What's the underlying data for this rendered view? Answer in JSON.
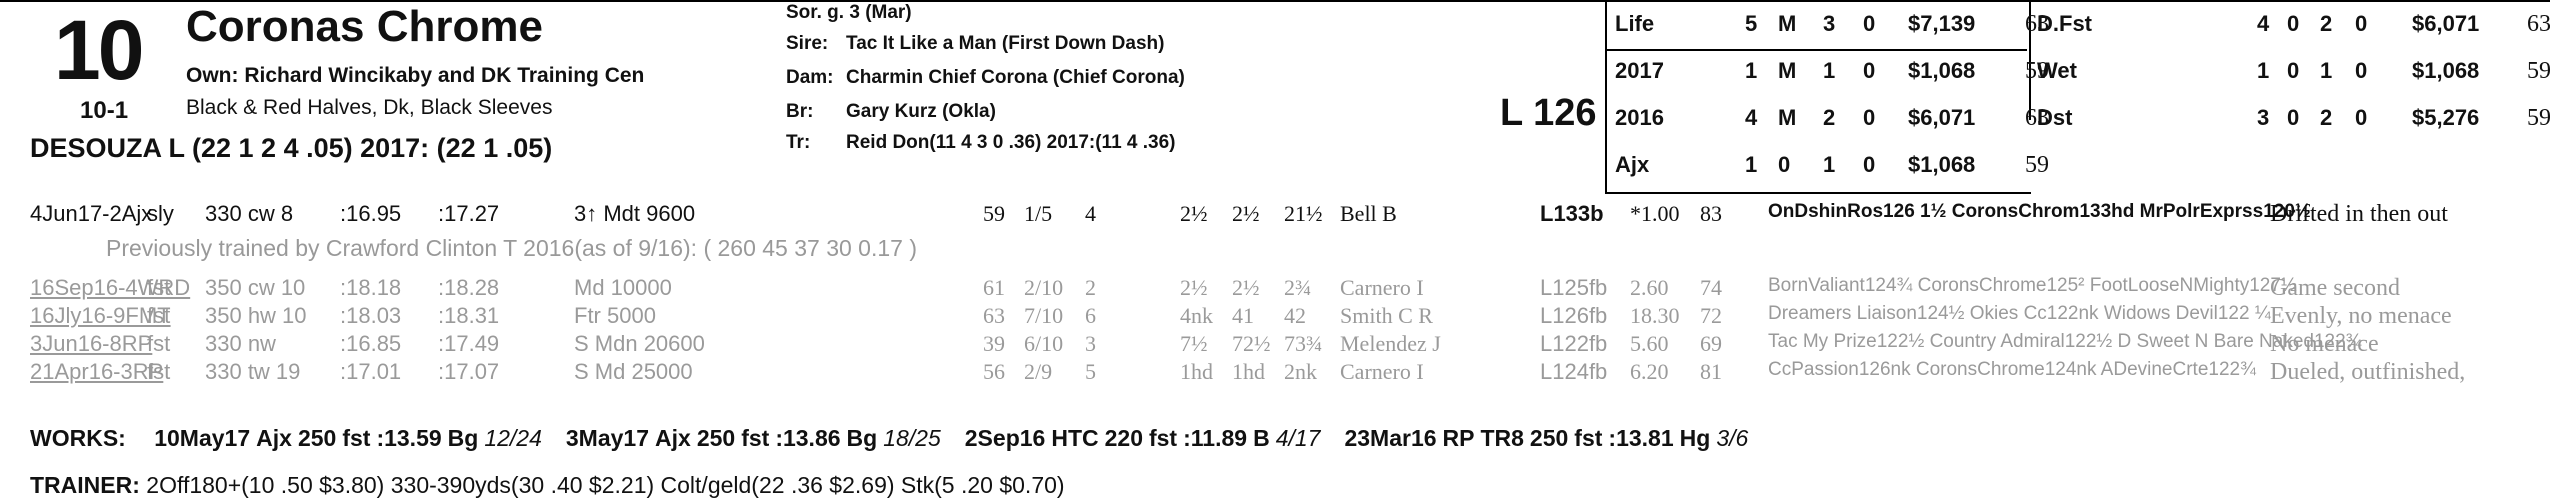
{
  "horse": {
    "number": "10",
    "odds": "10-1",
    "name": "Coronas Chrome",
    "owner": "Own: Richard Wincikaby and DK Training Cen",
    "silks": "Black & Red Halves, Dk, Black Sleeves",
    "jockey": "DESOUZA L (22 1 2 4 .05) 2017: (22 1 .05)"
  },
  "pedigree": {
    "sex_age": "Sor. g. 3 (Mar)",
    "sire_label": "Sire:",
    "sire": "Tac It Like a Man (First Down Dash)",
    "dam_label": "Dam:",
    "dam": "Charmin Chief Corona (Chief Corona)",
    "breeder_label": "Br:",
    "breeder": "Gary Kurz (Okla)",
    "trainer_label": "Tr:",
    "trainer": "Reid Don(11 4 3 0 .36) 2017:(11 4 .36)"
  },
  "weight": "L 126",
  "records_left": [
    {
      "label": "Life",
      "starts": "5",
      "w": "M",
      "p": "3",
      "s": "0",
      "earn": "$7,139",
      "speed": "63"
    },
    {
      "label": "2017",
      "starts": "1",
      "w": "M",
      "p": "1",
      "s": "0",
      "earn": "$1,068",
      "speed": "59"
    },
    {
      "label": "2016",
      "starts": "4",
      "w": "M",
      "p": "2",
      "s": "0",
      "earn": "$6,071",
      "speed": "63"
    },
    {
      "label": "Ajx",
      "starts": "1",
      "w": "0",
      "p": "1",
      "s": "0",
      "earn": "$1,068",
      "speed": "59"
    }
  ],
  "records_right": [
    {
      "label": "D.Fst",
      "starts": "4",
      "w": "0",
      "p": "2",
      "s": "0",
      "earn": "$6,071",
      "speed": "63"
    },
    {
      "label": "Wet",
      "starts": "1",
      "w": "0",
      "p": "1",
      "s": "0",
      "earn": "$1,068",
      "speed": "59"
    },
    {
      "label": "Dst",
      "starts": "3",
      "w": "0",
      "p": "2",
      "s": "0",
      "earn": "$5,276",
      "speed": "59"
    }
  ],
  "races": [
    {
      "date": "4Jun17-2Ajx",
      "cond": "sly",
      "dist": "330 cw 8",
      "f1": ":16.95",
      "f2": ":17.27",
      "type": "3↑ Mdt 9600",
      "sp": "59",
      "pp": "1/5",
      "st": "4",
      "c1": "2½",
      "c2": "2½",
      "fin": "21½",
      "jock": "Bell B",
      "wt": "L133b",
      "odds": "*1.00",
      "sr": "83",
      "top": "OnDshinRos126 1½ CoronsChrom133hd MrPolrExprss120½",
      "comment": "Drifted in then out"
    },
    {
      "date": "16Sep16-4WRD",
      "cond": "fst",
      "dist": "350 cw 10",
      "f1": ":18.18",
      "f2": ":18.28",
      "type": "Md 10000",
      "sp": "61",
      "pp": "2/10",
      "st": "2",
      "c1": "2½",
      "c2": "2½",
      "fin": "2¾",
      "jock": "Carnero I",
      "wt": "L125fb",
      "odds": "2.60",
      "sr": "74",
      "top": "BornValiant124¾ CoronsChrome125² FootLooseNMighty127½",
      "comment": "Game second"
    },
    {
      "date": "16Jly16-9FMT",
      "cond": "fst",
      "dist": "350 hw 10",
      "f1": ":18.03",
      "f2": ":18.31",
      "type": "Ftr 5000",
      "sp": "63",
      "pp": "7/10",
      "st": "6",
      "c1": "4nk",
      "c2": "41",
      "fin": "42",
      "jock": "Smith C R",
      "wt": "L126fb",
      "odds": "18.30",
      "sr": "72",
      "top": "Dreamers Liaison124½ Okies Cc122nk Widows Devil122 ¼",
      "comment": "Evenly, no menace"
    },
    {
      "date": "3Jun16-8RP",
      "cond": "fst",
      "dist": "330 nw",
      "f1": ":16.85",
      "f2": ":17.49",
      "type": "S Mdn 20600",
      "sp": "39",
      "pp": "6/10",
      "st": "3",
      "c1": "7½",
      "c2": "72½",
      "fin": "73¾",
      "jock": "Melendez J",
      "wt": "L122fb",
      "odds": "5.60",
      "sr": "69",
      "top": "Tac My Prize122½ Country Admiral122½ D Sweet N Bare Naked122¾",
      "comment": "No menace"
    },
    {
      "date": "21Apr16-3RP",
      "cond": "fst",
      "dist": "330 tw 19",
      "f1": ":17.01",
      "f2": ":17.07",
      "type": "S Md 25000",
      "sp": "56",
      "pp": "2/9",
      "st": "5",
      "c1": "1hd",
      "c2": "1hd",
      "fin": "2nk",
      "jock": "Carnero I",
      "wt": "L124fb",
      "odds": "6.20",
      "sr": "81",
      "top": "CcPassion126nk CoronsChrome124nk ADevineCrte122¾",
      "comment": "Dueled, outfinished,"
    }
  ],
  "trainer_change": "Previously trained by Crawford Clinton T 2016(as of 9/16): ( 260 45 37 30 0.17 )",
  "works_label": "WORKS:",
  "works": [
    {
      "date": "10May17",
      "track": "Ajx",
      "dist": "250",
      "cond": "fst",
      "time": ":13.59",
      "grade": "Bg",
      "rank": "12/24"
    },
    {
      "date": "3May17",
      "track": "Ajx",
      "dist": "250",
      "cond": "fst",
      "time": ":13.86",
      "grade": "Bg",
      "rank": "18/25"
    },
    {
      "date": "2Sep16",
      "track": "HTC",
      "dist": "220",
      "cond": "fst",
      "time": ":11.89",
      "grade": "B",
      "rank": "4/17"
    },
    {
      "date": "23Mar16",
      "track": "RP TR8",
      "dist": "250",
      "cond": "fst",
      "time": ":13.81",
      "grade": "Hg",
      "rank": "3/6"
    }
  ],
  "trainer_stats_label": "TRAINER:",
  "trainer_stats": "2Off180+(10 .50 $3.80) 330-390yds(30 .40 $2.21) Colt/geld(22 .36 $2.69) Stk(5 .20 $0.70)"
}
